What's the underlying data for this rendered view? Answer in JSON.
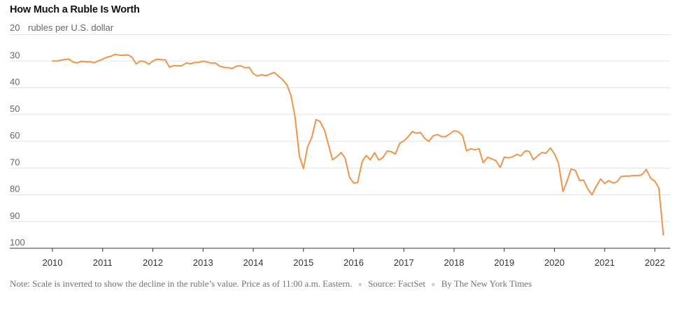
{
  "chart_data": {
    "type": "line",
    "title": "How Much a Ruble Is Worth",
    "ylabel": "rubles per U.S. dollar",
    "y_inverted": true,
    "ylim": [
      20,
      100
    ],
    "yticks": [
      20,
      30,
      40,
      50,
      60,
      70,
      80,
      90,
      100
    ],
    "yticklabels": [
      "20",
      "30",
      "40",
      "50",
      "60",
      "70",
      "80",
      "90",
      "100"
    ],
    "xlim": [
      2010,
      2022.25
    ],
    "xticks": [
      2010,
      2011,
      2012,
      2013,
      2014,
      2015,
      2016,
      2017,
      2018,
      2019,
      2020,
      2021,
      2022
    ],
    "xticklabels": [
      "2010",
      "2011",
      "2012",
      "2013",
      "2014",
      "2015",
      "2016",
      "2017",
      "2018",
      "2019",
      "2020",
      "2021",
      "2022"
    ],
    "grid": true,
    "line_color": "#f0944a",
    "series": [
      {
        "x": [
          2010.0,
          2010.08,
          2010.17,
          2010.25,
          2010.33,
          2010.42,
          2010.5,
          2010.58,
          2010.67,
          2010.75,
          2010.83,
          2010.92,
          2011.0,
          2011.08,
          2011.17,
          2011.25,
          2011.33,
          2011.42,
          2011.5,
          2011.58,
          2011.67,
          2011.75,
          2011.83,
          2011.92,
          2012.0,
          2012.08,
          2012.17,
          2012.25,
          2012.33,
          2012.42,
          2012.5,
          2012.58,
          2012.67,
          2012.75,
          2012.83,
          2012.92,
          2013.0,
          2013.08,
          2013.17,
          2013.25,
          2013.33,
          2013.42,
          2013.5,
          2013.58,
          2013.67,
          2013.75,
          2013.83,
          2013.92,
          2014.0,
          2014.08,
          2014.17,
          2014.25,
          2014.33,
          2014.42,
          2014.5,
          2014.58,
          2014.67,
          2014.75,
          2014.83,
          2014.92,
          2015.0,
          2015.08,
          2015.17,
          2015.25,
          2015.33,
          2015.42,
          2015.5,
          2015.58,
          2015.67,
          2015.75,
          2015.83,
          2015.92,
          2016.0,
          2016.08,
          2016.17,
          2016.25,
          2016.33,
          2016.42,
          2016.5,
          2016.58,
          2016.67,
          2016.75,
          2016.83,
          2016.92,
          2017.0,
          2017.08,
          2017.17,
          2017.25,
          2017.33,
          2017.42,
          2017.5,
          2017.58,
          2017.67,
          2017.75,
          2017.83,
          2017.92,
          2018.0,
          2018.08,
          2018.17,
          2018.25,
          2018.33,
          2018.42,
          2018.5,
          2018.58,
          2018.67,
          2018.75,
          2018.83,
          2018.92,
          2019.0,
          2019.08,
          2019.17,
          2019.25,
          2019.33,
          2019.42,
          2019.5,
          2019.58,
          2019.67,
          2019.75,
          2019.83,
          2019.92,
          2020.0,
          2020.08,
          2020.17,
          2020.25,
          2020.33,
          2020.42,
          2020.5,
          2020.58,
          2020.67,
          2020.75,
          2020.83,
          2020.92,
          2021.0,
          2021.08,
          2021.17,
          2021.25,
          2021.33,
          2021.42,
          2021.5,
          2021.58,
          2021.67,
          2021.75,
          2021.83,
          2021.92,
          2022.0,
          2022.08,
          2022.17
        ],
        "values": [
          30.0,
          30.0,
          29.7,
          29.4,
          29.3,
          30.5,
          30.7,
          30.1,
          30.3,
          30.3,
          30.7,
          29.9,
          29.3,
          28.6,
          28.2,
          27.5,
          27.8,
          27.9,
          27.7,
          28.5,
          31.1,
          30.0,
          30.2,
          31.2,
          30.0,
          29.3,
          29.5,
          29.6,
          32.3,
          31.7,
          31.8,
          31.7,
          30.7,
          31.0,
          30.6,
          30.5,
          30.0,
          30.4,
          30.8,
          30.8,
          31.9,
          32.4,
          32.5,
          32.8,
          31.9,
          31.8,
          32.5,
          32.4,
          34.7,
          35.6,
          35.1,
          35.5,
          34.9,
          34.3,
          35.6,
          36.9,
          38.8,
          42.8,
          50.7,
          65.6,
          70.2,
          62.2,
          58.4,
          51.9,
          52.6,
          55.9,
          61.4,
          66.9,
          65.7,
          64.2,
          66.3,
          73.6,
          75.6,
          75.5,
          67.6,
          65.3,
          66.9,
          64.3,
          67.0,
          66.2,
          63.6,
          63.9,
          64.8,
          60.7,
          59.9,
          58.4,
          56.4,
          57.0,
          56.7,
          59.0,
          60.0,
          58.0,
          57.5,
          58.3,
          58.3,
          57.2,
          56.1,
          56.4,
          57.8,
          63.6,
          62.8,
          63.2,
          62.8,
          68.0,
          66.0,
          66.6,
          67.2,
          69.8,
          65.9,
          66.2,
          65.8,
          64.9,
          65.5,
          63.6,
          63.8,
          66.9,
          65.4,
          64.2,
          64.5,
          62.5,
          64.7,
          68.0,
          78.8,
          75.0,
          70.4,
          70.9,
          74.7,
          74.5,
          78.0,
          80.0,
          76.9,
          74.1,
          75.8,
          74.7,
          75.6,
          75.1,
          73.2,
          73.0,
          73.0,
          72.8,
          72.9,
          72.4,
          70.5,
          73.9,
          74.9,
          77.4,
          95.0
        ]
      }
    ]
  },
  "footer": {
    "note": "Note: Scale is inverted to show the decline in the ruble’s value. Price as of 11:00 a.m. Eastern.",
    "source": "Source: FactSet",
    "credit": "By The New York Times",
    "separator": "●"
  }
}
